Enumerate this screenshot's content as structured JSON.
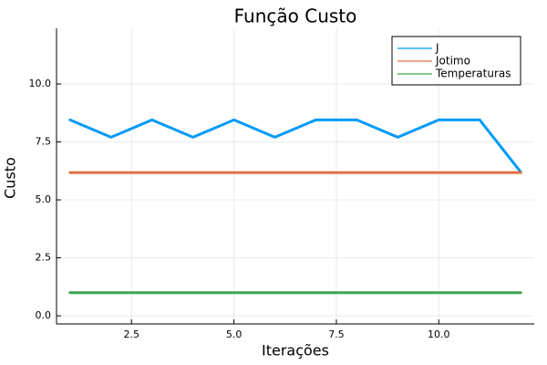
{
  "chart_data": {
    "type": "line",
    "title": "Função Custo",
    "xlabel": "Iterações",
    "ylabel": "Custo",
    "xlim": [
      0.67,
      12.33
    ],
    "ylim": [
      -0.35,
      12.4
    ],
    "xticks": [
      2.5,
      5.0,
      7.5,
      10.0
    ],
    "xtick_labels": [
      "2.5",
      "5.0",
      "7.5",
      "10.0"
    ],
    "yticks": [
      0.0,
      2.5,
      5.0,
      7.5,
      10.0
    ],
    "ytick_labels": [
      "0.0",
      "2.5",
      "5.0",
      "7.5",
      "10.0"
    ],
    "grid": true,
    "legend_position": "top-right",
    "x": [
      1,
      2,
      3,
      4,
      5,
      6,
      7,
      8,
      9,
      10,
      11,
      12
    ],
    "series": [
      {
        "name": "J",
        "color": "#009af9",
        "values": [
          8.45,
          7.7,
          8.45,
          7.7,
          8.45,
          7.7,
          8.45,
          8.45,
          7.7,
          8.45,
          8.45,
          6.2
        ]
      },
      {
        "name": "Jotimo",
        "color": "#e26f46",
        "values": [
          6.18,
          6.18,
          6.18,
          6.18,
          6.18,
          6.18,
          6.18,
          6.18,
          6.18,
          6.18,
          6.18,
          6.18
        ]
      },
      {
        "name": "Temperaturas",
        "color": "#3da44d",
        "values": [
          1.0,
          1.0,
          1.0,
          1.0,
          1.0,
          1.0,
          1.0,
          1.0,
          1.0,
          1.0,
          1.0,
          1.0
        ]
      }
    ]
  }
}
